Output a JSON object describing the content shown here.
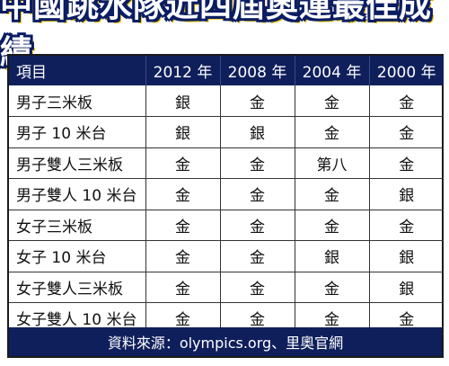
{
  "title": "中國跳水隊近四屆奧運最佳成績",
  "colors": {
    "header_bg": "#0f1f5c",
    "title_outline": "#0b1d63",
    "accent": "#f2c400"
  },
  "table": {
    "headers": [
      "項目",
      "2012 年",
      "2008 年",
      "2004 年",
      "2000 年"
    ],
    "rows": [
      [
        "男子三米板",
        "銀",
        "金",
        "金",
        "金"
      ],
      [
        "男子 10 米台",
        "銀",
        "銀",
        "金",
        "金"
      ],
      [
        "男子雙人三米板",
        "金",
        "金",
        "第八",
        "金"
      ],
      [
        "男子雙人 10 米台",
        "金",
        "金",
        "金",
        "銀"
      ],
      [
        "女子三米板",
        "金",
        "金",
        "金",
        "金"
      ],
      [
        "女子 10 米台",
        "金",
        "金",
        "銀",
        "銀"
      ],
      [
        "女子雙人三米板",
        "金",
        "金",
        "金",
        "銀"
      ],
      [
        "女子雙人 10 米台",
        "金",
        "金",
        "金",
        "金"
      ]
    ]
  },
  "footer": "資料來源：olympics.org、里奧官網"
}
